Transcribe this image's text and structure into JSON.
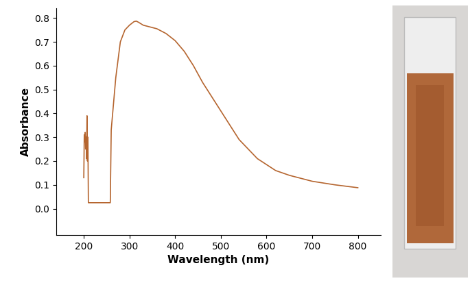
{
  "chart_data": {
    "type": "line",
    "x_label": "Wavelength (nm)",
    "y_label": "Absorbance",
    "x": [
      200,
      201,
      202,
      203,
      204,
      205,
      206,
      207,
      208,
      209,
      210,
      220,
      240,
      258,
      260,
      270,
      280,
      290,
      300,
      310,
      315,
      320,
      330,
      340,
      350,
      360,
      370,
      380,
      390,
      400,
      420,
      440,
      460,
      480,
      500,
      520,
      540,
      560,
      580,
      600,
      620,
      650,
      700,
      750,
      800
    ],
    "values": [
      0.13,
      0.31,
      0.28,
      0.32,
      0.25,
      0.3,
      0.21,
      0.39,
      0.2,
      0.3,
      0.025,
      0.025,
      0.025,
      0.025,
      0.33,
      0.55,
      0.7,
      0.75,
      0.77,
      0.785,
      0.787,
      0.782,
      0.77,
      0.765,
      0.76,
      0.755,
      0.745,
      0.735,
      0.72,
      0.705,
      0.66,
      0.6,
      0.53,
      0.47,
      0.41,
      0.35,
      0.29,
      0.25,
      0.21,
      0.185,
      0.16,
      0.14,
      0.115,
      0.1,
      0.088
    ],
    "color": "#b5652f",
    "xlim": [
      140,
      850
    ],
    "xticks": [
      200,
      300,
      400,
      500,
      600,
      700,
      800
    ],
    "ylim": [
      -0.11,
      0.84
    ],
    "yticks": [
      0.0,
      0.1,
      0.2,
      0.3,
      0.4,
      0.5,
      0.6,
      0.7,
      0.8
    ],
    "grid": false
  }
}
